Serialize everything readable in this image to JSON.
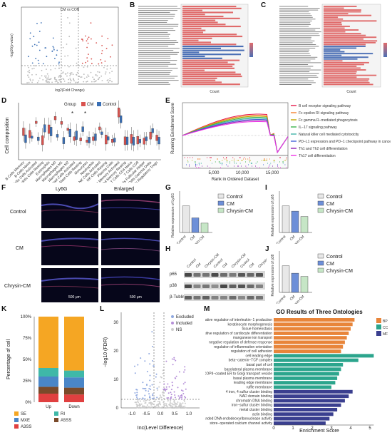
{
  "panel_labels": [
    "A",
    "B",
    "C",
    "D",
    "E",
    "F",
    "G",
    "H",
    "I",
    "J",
    "K",
    "L",
    "M"
  ],
  "colors": {
    "cm": "#d9534f",
    "control": "#3a6fb5",
    "bar_red": "#e06b6b",
    "bar_pink": "#f08c8c",
    "bar_blue": "#4b6fb5",
    "g_control": "#e8e8e8",
    "g_cm": "#6d8fd8",
    "g_chrysin": "#c6e6c6",
    "go_bp": "#e8853a",
    "go_cc": "#2ca58d",
    "go_mf": "#3a3f8f",
    "k_se": "#f5a623",
    "k_ri": "#3fb8a8",
    "k_mxe": "#4a86c8",
    "k_a5ss": "#7a4a2a",
    "k_a3ss": "#e04040"
  },
  "panelA": {
    "title": "CM vs CON",
    "xlabel": "log2(Fold Change)",
    "ylabel": "-log10(p-value)"
  },
  "panelB": {
    "xlabel": "Count"
  },
  "panelC": {
    "xlabel": "Count"
  },
  "panelD": {
    "ylabel": "Cell composition",
    "legend_title": "Group",
    "legend": [
      "CM",
      "Control"
    ],
    "star": "*",
    "categories": [
      "B Cells Memory",
      "B Cells Naive",
      "Dendritic Cells Activated",
      "Dendritic Cells Resting",
      "Eosinophils",
      "Macrophages M0",
      "Macrophages M1",
      "Macrophages M2",
      "Mast Cells Activated",
      "Mast Cells Resting",
      "Monocytes",
      "Neutrophils",
      "NK Cells Activated",
      "NK Cells Resting",
      "Plasma Cells",
      "T Cells CD4 Memory Activated",
      "T Cells CD4 Memory Resting",
      "T Cells CD4 Naive",
      "T Cells CD8",
      "T Cells Follicular Helper",
      "T Cells Gamma Delta",
      "T Cells Regulatory Tregs"
    ]
  },
  "panelE": {
    "ylabel": "Running Enrichment Score",
    "xlabel": "Rank in Ordered Dataset",
    "xticks": [
      "5,000",
      "10,000",
      "15,000"
    ],
    "legend": [
      {
        "name": "B cell receptor signaling pathway",
        "color": "#e6194b"
      },
      {
        "name": "Fc epsilon RI signaling pathway",
        "color": "#f58231"
      },
      {
        "name": "Fc gamma R−mediated phagocytosis",
        "color": "#bfa600"
      },
      {
        "name": "IL−17 signaling pathway",
        "color": "#3cb44b"
      },
      {
        "name": "Natural killer cell mediated cytotoxicity",
        "color": "#42b4a8"
      },
      {
        "name": "PD−L1 expression and PD−1 checkpoint pathway in cancer",
        "color": "#4363d8"
      },
      {
        "name": "Th1 and Th2 cell differentiation",
        "color": "#911eb4"
      },
      {
        "name": "Th17 cell differentiation",
        "color": "#f032e6"
      }
    ]
  },
  "panelF": {
    "col_titles": [
      "Ly6G",
      "Enlarged"
    ],
    "row_labels": [
      "Control",
      "CM",
      "Chrysin-CM"
    ],
    "scalebar_left": "500 μm",
    "scalebar_right": "500 μm"
  },
  "panelG": {
    "ylabel": "Relative expression of Ly6G",
    "legend": [
      "Control",
      "CM",
      "Chrysin-CM"
    ],
    "values": [
      1.0,
      0.55,
      0.35
    ],
    "ylim": [
      0,
      1.5
    ]
  },
  "panelH": {
    "lanes": [
      "Control",
      "CM",
      "Chrysin-CM",
      "Control",
      "CM",
      "Chrysin-CM",
      "Control",
      "CM",
      "Chrysin-CM"
    ],
    "rows": [
      "p65",
      "p38",
      "β-Tublin"
    ]
  },
  "panelI": {
    "ylabel": "Relative expression of p65",
    "legend": [
      "Control",
      "CM",
      "Chrysin-CM"
    ],
    "values": [
      1.0,
      0.8,
      0.6
    ],
    "ylim": [
      0,
      1.5
    ]
  },
  "panelJ": {
    "ylabel": "Relative expression of p38",
    "legend": [
      "Control",
      "CM",
      "Chrysin-CM"
    ],
    "values": [
      1.0,
      0.72,
      0.6
    ],
    "ylim": [
      0,
      1.5
    ]
  },
  "panelK": {
    "ylabel": "Percentage of cell",
    "categories": [
      "Up",
      "Down"
    ],
    "yticks": [
      "0%",
      "25%",
      "50%",
      "75%",
      "100%"
    ],
    "legend": [
      "SE",
      "RI",
      "MXE",
      "A5SS",
      "A3SS"
    ],
    "series": [
      {
        "name": "A3SS",
        "values": [
          10,
          9
        ]
      },
      {
        "name": "A5SS",
        "values": [
          8,
          8
        ]
      },
      {
        "name": "MXE",
        "values": [
          12,
          12
        ]
      },
      {
        "name": "RI",
        "values": [
          10,
          8
        ]
      },
      {
        "name": "SE",
        "values": [
          60,
          63
        ]
      }
    ]
  },
  "panelL": {
    "ylabel": "−log10 (FDR)",
    "xlabel": "Inc(Level Difference)",
    "xticks": [
      "-1.0",
      "-0.5",
      "0.0",
      "0.5",
      "1.0"
    ],
    "yticks": [
      "0",
      "10",
      "20",
      "30"
    ],
    "legend": [
      {
        "name": "Excluded",
        "color": "#8fa8e0"
      },
      {
        "name": "Included",
        "color": "#b58fd8"
      },
      {
        "name": "NS",
        "color": "#cccccc"
      }
    ]
  },
  "panelM": {
    "title": "GO Results of Three Ontologies",
    "xlabel": "Enrichment Score",
    "xticks": [
      "0",
      "1",
      "2",
      "3",
      "4",
      "5"
    ],
    "legend": [
      "BP",
      "CC",
      "MF"
    ],
    "bars": [
      {
        "term": "negative regulation of interleukin−1 production",
        "value": 4.2,
        "group": "BP"
      },
      {
        "term": "keratinocyte morphogenesis",
        "value": 4.1,
        "group": "BP"
      },
      {
        "term": "tissue homeostasis",
        "value": 4.0,
        "group": "BP"
      },
      {
        "term": "positive regulation of cardiocyte differentiation",
        "value": 3.9,
        "group": "BP"
      },
      {
        "term": "manganese ion transport",
        "value": 3.8,
        "group": "BP"
      },
      {
        "term": "negative regulation of defense response",
        "value": 3.7,
        "group": "BP"
      },
      {
        "term": "regulation of inflammation orientation",
        "value": 3.6,
        "group": "BP"
      },
      {
        "term": "regulation of cell adhesion",
        "value": 3.5,
        "group": "BP"
      },
      {
        "term": "cell leading edge",
        "value": 5.2,
        "group": "CC"
      },
      {
        "term": "beta−catenin−TCF complex",
        "value": 4.4,
        "group": "CC"
      },
      {
        "term": "basal part of cell",
        "value": 3.6,
        "group": "CC"
      },
      {
        "term": "basolateral plasma membrane",
        "value": 3.5,
        "group": "CC"
      },
      {
        "term": "COPII−coated ER to Golgi transport vesicle",
        "value": 3.4,
        "group": "CC"
      },
      {
        "term": "basal plasma membrane",
        "value": 3.3,
        "group": "CC"
      },
      {
        "term": "leading edge membrane",
        "value": 3.2,
        "group": "CC"
      },
      {
        "term": "ruffle membrane",
        "value": 3.0,
        "group": "CC"
      },
      {
        "term": "4 iron, 4 sulfur cluster binding",
        "value": 4.1,
        "group": "MF"
      },
      {
        "term": "NAD domain binding",
        "value": 3.9,
        "group": "MF"
      },
      {
        "term": "chromatin DNA binding",
        "value": 3.7,
        "group": "MF"
      },
      {
        "term": "iron−sulfur cluster binding",
        "value": 3.5,
        "group": "MF"
      },
      {
        "term": "metal cluster binding",
        "value": 3.3,
        "group": "MF"
      },
      {
        "term": "actin binding",
        "value": 3.1,
        "group": "MF"
      },
      {
        "term": "single−stranded DNA endodeoxyribonuclease activity",
        "value": 2.9,
        "group": "MF"
      },
      {
        "term": "store−operated calcium channel activity",
        "value": 2.7,
        "group": "MF"
      }
    ]
  }
}
